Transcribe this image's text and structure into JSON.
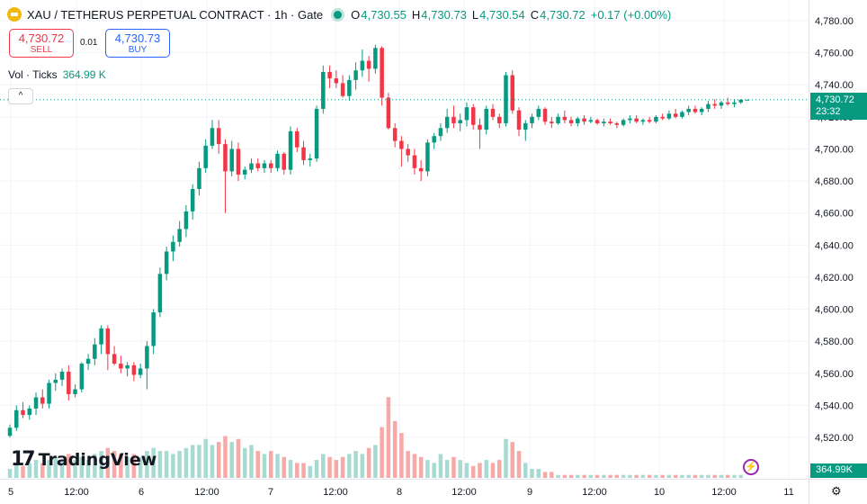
{
  "header": {
    "symbol": "XAU / TETHERUS PERPETUAL CONTRACT · 1h · Gate",
    "o_key": "O",
    "o_val": "4,730.55",
    "h_key": "H",
    "h_val": "4,730.73",
    "l_key": "L",
    "l_val": "4,730.54",
    "c_key": "C",
    "c_val": "4,730.72",
    "change": "+0.17 (+0.00%)"
  },
  "trade": {
    "sell_price": "4,730.72",
    "sell_label": "SELL",
    "spread": "0.01",
    "buy_price": "4,730.73",
    "buy_label": "BUY"
  },
  "volume": {
    "label": "Vol · Ticks",
    "value": "364.99 K"
  },
  "collapse_glyph": "^",
  "branding": {
    "mark": "17",
    "name": "TradingView"
  },
  "labels": {
    "last_price": "4,730.72",
    "countdown": "23:32",
    "volume_badge": "364.99K",
    "bolt_glyph": "⚡",
    "settings_glyph": "⚙"
  },
  "colors": {
    "up": "#089981",
    "down": "#f23645",
    "vol_up": "#a7dbd1",
    "vol_down": "#f7a9a7",
    "grid": "#f0f3fa"
  },
  "chart_data": {
    "type": "candlestick",
    "y_ticks": [
      "4,780.00",
      "4,760.00",
      "4,740.00",
      "4,720.00",
      "4,700.00",
      "4,680.00",
      "4,660.00",
      "4,640.00",
      "4,620.00",
      "4,600.00",
      "4,580.00",
      "4,560.00",
      "4,540.00",
      "4,520.00"
    ],
    "y_tick_values": [
      4780,
      4760,
      4740,
      4720,
      4700,
      4680,
      4660,
      4640,
      4620,
      4600,
      4580,
      4560,
      4540,
      4520
    ],
    "ylim": [
      4512,
      4784
    ],
    "x_ticks": [
      "5",
      "12:00",
      "6",
      "12:00",
      "7",
      "12:00",
      "8",
      "12:00",
      "9",
      "12:00",
      "10",
      "12:00",
      "11"
    ],
    "last_price": 4730.72,
    "candles": [
      [
        4521,
        4528,
        4520,
        4526
      ],
      [
        4526,
        4540,
        4524,
        4537
      ],
      [
        4537,
        4542,
        4532,
        4534
      ],
      [
        4534,
        4540,
        4531,
        4538
      ],
      [
        4538,
        4548,
        4534,
        4545
      ],
      [
        4545,
        4550,
        4538,
        4541
      ],
      [
        4541,
        4556,
        4538,
        4554
      ],
      [
        4554,
        4560,
        4549,
        4556
      ],
      [
        4556,
        4563,
        4552,
        4561
      ],
      [
        4561,
        4565,
        4543,
        4547
      ],
      [
        4547,
        4553,
        4545,
        4550
      ],
      [
        4550,
        4567,
        4548,
        4566
      ],
      [
        4566,
        4572,
        4562,
        4569
      ],
      [
        4569,
        4582,
        4565,
        4578
      ],
      [
        4578,
        4590,
        4572,
        4588
      ],
      [
        4588,
        4590,
        4562,
        4572
      ],
      [
        4572,
        4577,
        4565,
        4566
      ],
      [
        4566,
        4571,
        4560,
        4563
      ],
      [
        4563,
        4567,
        4558,
        4565
      ],
      [
        4565,
        4567,
        4555,
        4559
      ],
      [
        4559,
        4566,
        4557,
        4563
      ],
      [
        4563,
        4580,
        4550,
        4577
      ],
      [
        4577,
        4600,
        4572,
        4598
      ],
      [
        4598,
        4626,
        4595,
        4622
      ],
      [
        4622,
        4639,
        4618,
        4636
      ],
      [
        4636,
        4646,
        4630,
        4642
      ],
      [
        4642,
        4655,
        4639,
        4650
      ],
      [
        4650,
        4665,
        4645,
        4661
      ],
      [
        4661,
        4678,
        4656,
        4675
      ],
      [
        4675,
        4692,
        4671,
        4688
      ],
      [
        4688,
        4706,
        4685,
        4702
      ],
      [
        4702,
        4718,
        4700,
        4713
      ],
      [
        4713,
        4718,
        4697,
        4703
      ],
      [
        4703,
        4706,
        4660,
        4686
      ],
      [
        4686,
        4705,
        4683,
        4700
      ],
      [
        4700,
        4704,
        4680,
        4684
      ],
      [
        4684,
        4689,
        4681,
        4687
      ],
      [
        4687,
        4694,
        4685,
        4691
      ],
      [
        4691,
        4694,
        4686,
        4688
      ],
      [
        4688,
        4693,
        4685,
        4691
      ],
      [
        4691,
        4693,
        4685,
        4688
      ],
      [
        4688,
        4699,
        4686,
        4697
      ],
      [
        4697,
        4698,
        4684,
        4687
      ],
      [
        4687,
        4714,
        4684,
        4711
      ],
      [
        4711,
        4713,
        4698,
        4701
      ],
      [
        4701,
        4705,
        4690,
        4693
      ],
      [
        4693,
        4697,
        4689,
        4694
      ],
      [
        4694,
        4727,
        4692,
        4725
      ],
      [
        4725,
        4752,
        4722,
        4748
      ],
      [
        4748,
        4752,
        4738,
        4744
      ],
      [
        4744,
        4749,
        4738,
        4741
      ],
      [
        4741,
        4746,
        4732,
        4733
      ],
      [
        4733,
        4746,
        4730,
        4743
      ],
      [
        4743,
        4754,
        4737,
        4749
      ],
      [
        4749,
        4762,
        4745,
        4755
      ],
      [
        4755,
        4758,
        4742,
        4750
      ],
      [
        4750,
        4765,
        4747,
        4763
      ],
      [
        4763,
        4764,
        4727,
        4732
      ],
      [
        4732,
        4735,
        4712,
        4713
      ],
      [
        4713,
        4716,
        4701,
        4705
      ],
      [
        4705,
        4708,
        4689,
        4700
      ],
      [
        4700,
        4703,
        4692,
        4696
      ],
      [
        4696,
        4700,
        4684,
        4688
      ],
      [
        4688,
        4693,
        4680,
        4686
      ],
      [
        4686,
        4706,
        4683,
        4704
      ],
      [
        4704,
        4710,
        4700,
        4708
      ],
      [
        4708,
        4716,
        4705,
        4713
      ],
      [
        4713,
        4725,
        4710,
        4720
      ],
      [
        4720,
        4727,
        4713,
        4716
      ],
      [
        4716,
        4722,
        4711,
        4718
      ],
      [
        4718,
        4729,
        4714,
        4726
      ],
      [
        4726,
        4728,
        4712,
        4715
      ],
      [
        4715,
        4719,
        4700,
        4712
      ],
      [
        4712,
        4727,
        4709,
        4725
      ],
      [
        4725,
        4728,
        4718,
        4720
      ],
      [
        4720,
        4722,
        4713,
        4716
      ],
      [
        4716,
        4748,
        4714,
        4746
      ],
      [
        4746,
        4749,
        4722,
        4724
      ],
      [
        4724,
        4726,
        4708,
        4712
      ],
      [
        4712,
        4718,
        4705,
        4716
      ],
      [
        4716,
        4722,
        4713,
        4720
      ],
      [
        4720,
        4727,
        4718,
        4725
      ],
      [
        4725,
        4726,
        4715,
        4717
      ],
      [
        4717,
        4720,
        4713,
        4716
      ],
      [
        4716,
        4722,
        4715,
        4720
      ],
      [
        4720,
        4724,
        4716,
        4718
      ],
      [
        4718,
        4720,
        4714,
        4716
      ],
      [
        4716,
        4720,
        4714,
        4719
      ],
      [
        4719,
        4721,
        4715,
        4717
      ],
      [
        4717,
        4720,
        4716,
        4718
      ],
      [
        4718,
        4719,
        4715,
        4716
      ],
      [
        4716,
        4719,
        4714,
        4717
      ],
      [
        4717,
        4719,
        4715,
        4716
      ],
      [
        4716,
        4717,
        4713,
        4715
      ],
      [
        4715,
        4719,
        4714,
        4718
      ],
      [
        4718,
        4721,
        4716,
        4719
      ],
      [
        4719,
        4721,
        4716,
        4717
      ],
      [
        4717,
        4719,
        4715,
        4718
      ],
      [
        4718,
        4720,
        4716,
        4717
      ],
      [
        4717,
        4721,
        4716,
        4720
      ],
      [
        4720,
        4722,
        4718,
        4719
      ],
      [
        4719,
        4724,
        4718,
        4722
      ],
      [
        4722,
        4725,
        4719,
        4720
      ],
      [
        4720,
        4724,
        4719,
        4723
      ],
      [
        4723,
        4727,
        4721,
        4725
      ],
      [
        4725,
        4727,
        4722,
        4723
      ],
      [
        4723,
        4726,
        4721,
        4725
      ],
      [
        4725,
        4730,
        4723,
        4728
      ],
      [
        4728,
        4731,
        4725,
        4727
      ],
      [
        4727,
        4730,
        4725,
        4729
      ],
      [
        4729,
        4732,
        4727,
        4728
      ],
      [
        4728,
        4731,
        4726,
        4729
      ],
      [
        4729,
        4731,
        4728,
        4730.7
      ],
      [
        4730.55,
        4730.73,
        4730.54,
        4730.72
      ]
    ],
    "volume_ylim": [
      0,
      40
    ],
    "volumes": [
      3,
      5,
      4,
      5,
      6,
      5,
      6,
      7,
      6,
      8,
      6,
      7,
      6,
      8,
      9,
      10,
      9,
      8,
      7,
      8,
      7,
      9,
      10,
      9,
      9,
      8,
      9,
      10,
      11,
      11,
      13,
      11,
      12,
      14,
      12,
      13,
      10,
      11,
      9,
      8,
      9,
      8,
      7,
      6,
      5,
      5,
      4,
      6,
      8,
      7,
      6,
      7,
      8,
      9,
      8,
      10,
      11,
      17,
      27,
      19,
      15,
      9,
      8,
      7,
      6,
      5,
      8,
      6,
      7,
      6,
      5,
      4,
      5,
      6,
      5,
      6,
      13,
      12,
      9,
      5,
      3,
      3,
      2,
      2,
      1,
      1,
      1,
      1,
      1,
      1,
      1,
      1,
      1,
      1,
      1,
      1,
      1,
      1,
      1,
      1,
      1,
      1,
      1,
      1,
      1,
      1,
      1,
      1,
      1,
      1,
      1,
      1,
      1
    ]
  }
}
